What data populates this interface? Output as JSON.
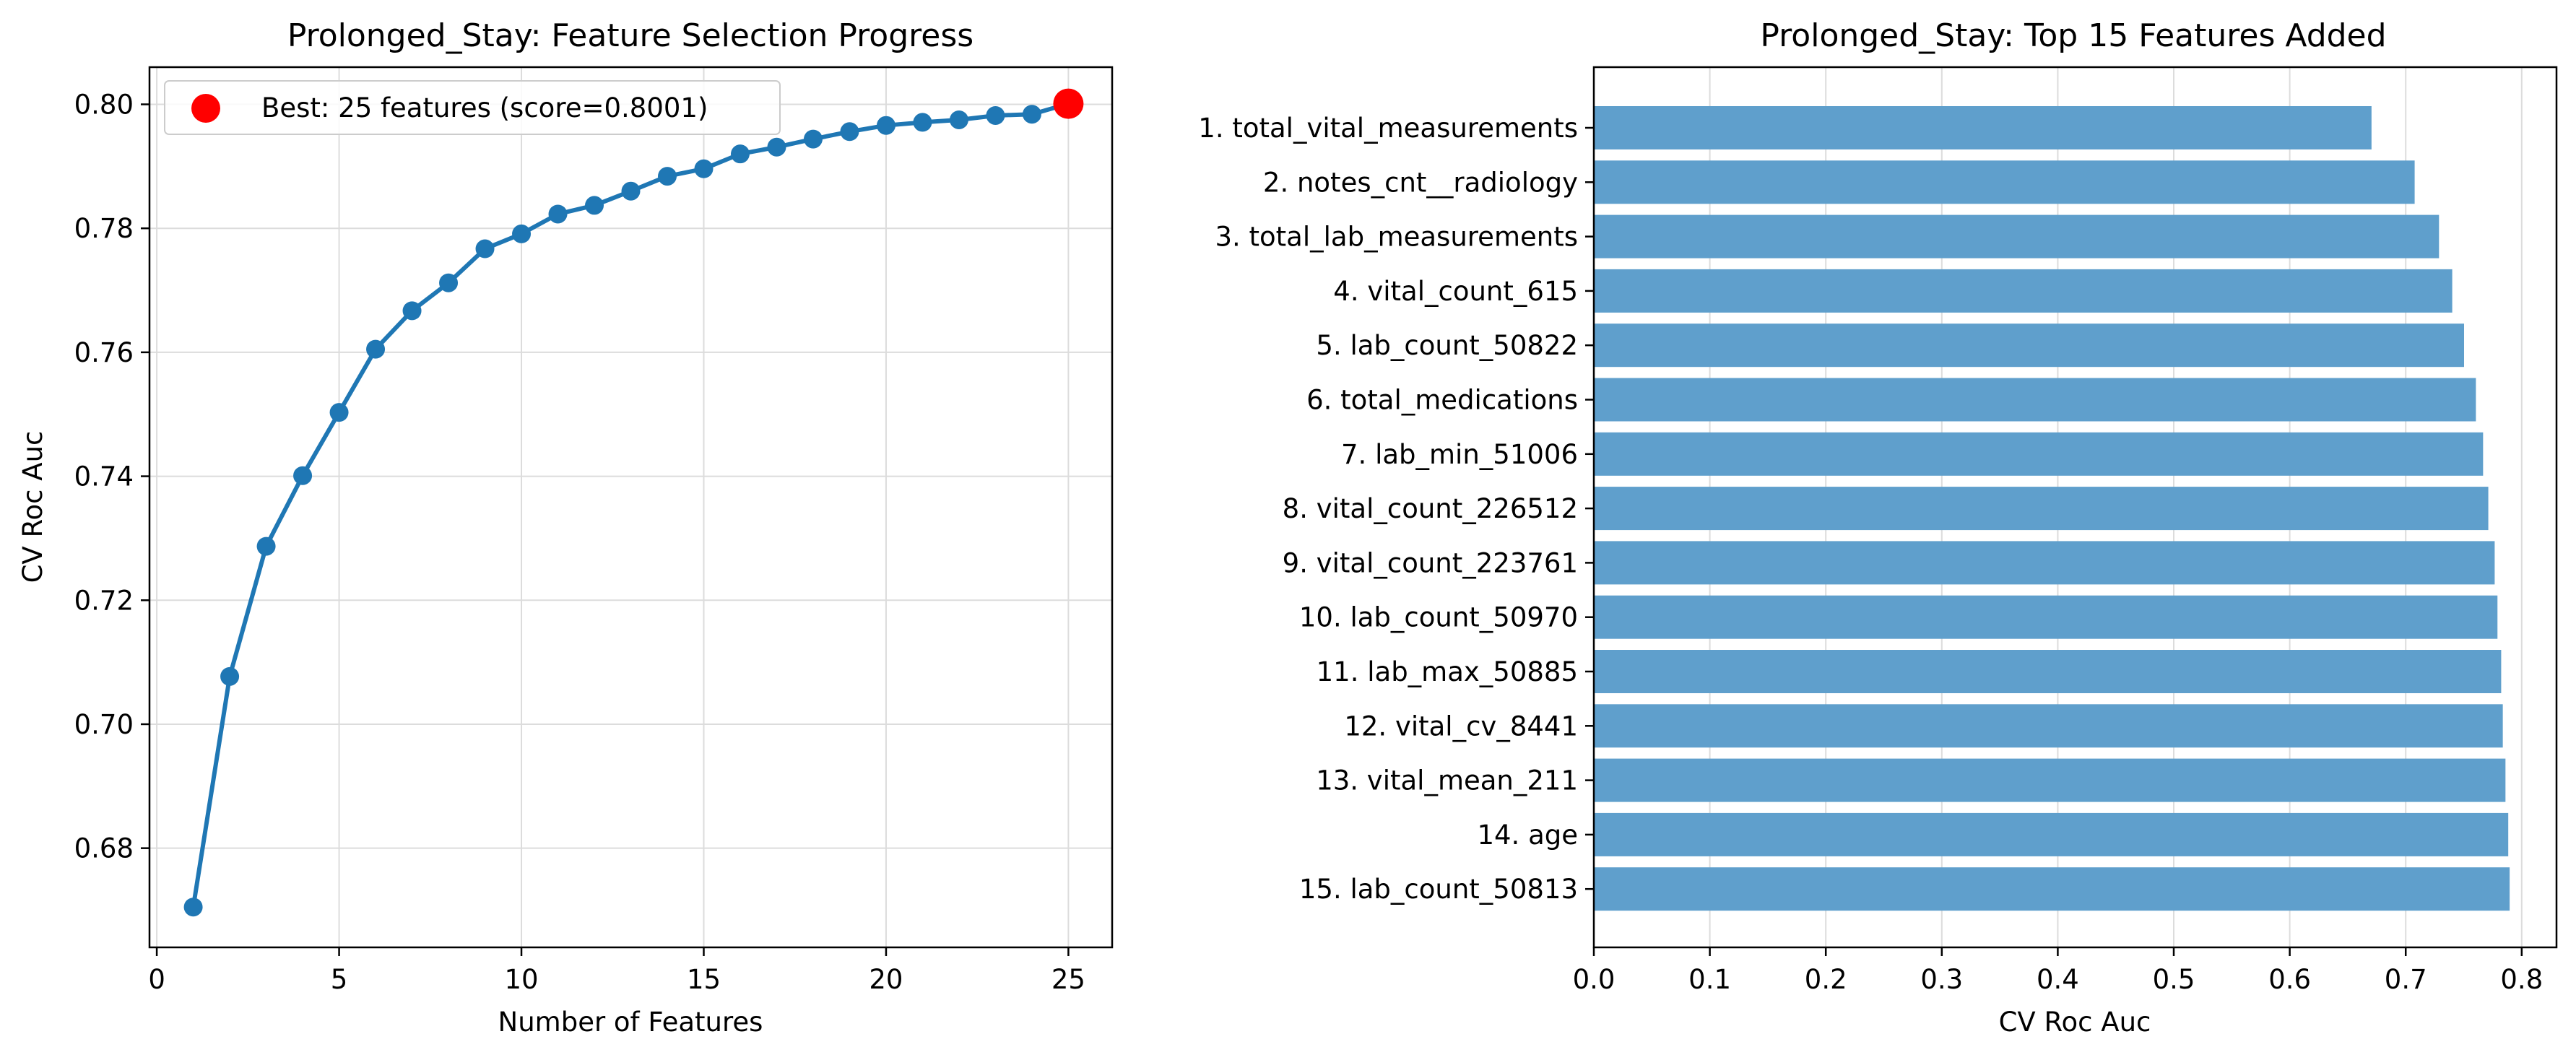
{
  "colors": {
    "line": "#1f77b4",
    "best": "#ff0000",
    "bar": "#5f9fcc",
    "grid": "#dcdcdc"
  },
  "chart_data": [
    {
      "type": "line",
      "title": "Prolonged_Stay: Feature Selection Progress",
      "xlabel": "Number of Features",
      "ylabel": "CV Roc Auc",
      "xlim": [
        -0.2,
        26.2
      ],
      "ylim": [
        0.664,
        0.806
      ],
      "xticks": [
        0,
        5,
        10,
        15,
        20,
        25
      ],
      "yticks": [
        0.68,
        0.7,
        0.72,
        0.74,
        0.76,
        0.78,
        0.8
      ],
      "grid": true,
      "legend_position": "upper-left",
      "legend_label": "Best: 25 features (score=0.8001)",
      "x": [
        1,
        2,
        3,
        4,
        5,
        6,
        7,
        8,
        9,
        10,
        11,
        12,
        13,
        14,
        15,
        16,
        17,
        18,
        19,
        20,
        21,
        22,
        23,
        24,
        25
      ],
      "y": [
        0.6705,
        0.7077,
        0.7287,
        0.7401,
        0.7503,
        0.7605,
        0.7667,
        0.7712,
        0.7767,
        0.7791,
        0.7823,
        0.7837,
        0.786,
        0.7884,
        0.7896,
        0.792,
        0.7931,
        0.7944,
        0.7956,
        0.7966,
        0.7971,
        0.7975,
        0.7982,
        0.7984,
        0.8001
      ],
      "best": {
        "x": 25,
        "y": 0.8001
      }
    },
    {
      "type": "bar",
      "orientation": "horizontal",
      "title": "Prolonged_Stay: Top 15 Features Added",
      "xlabel": "CV Roc Auc",
      "ylabel": "",
      "xlim": [
        0,
        0.83
      ],
      "xticks": [
        "0.0",
        "0.1",
        "0.2",
        "0.3",
        "0.4",
        "0.5",
        "0.6",
        "0.7",
        "0.8"
      ],
      "grid": true,
      "categories": [
        "1. total_vital_measurements",
        "2. notes_cnt__radiology",
        "3. total_lab_measurements",
        "4. vital_count_615",
        "5. lab_count_50822",
        "6. total_medications",
        "7. lab_min_51006",
        "8. vital_count_226512",
        "9. vital_count_223761",
        "10. lab_count_50970",
        "11. lab_max_50885",
        "12. vital_cv_8441",
        "13. vital_mean_211",
        "14. age",
        "15. lab_count_50813"
      ],
      "values": [
        0.6705,
        0.7077,
        0.7287,
        0.7401,
        0.7503,
        0.7605,
        0.7667,
        0.7712,
        0.7767,
        0.7791,
        0.7823,
        0.7837,
        0.786,
        0.7884,
        0.7896
      ]
    }
  ]
}
